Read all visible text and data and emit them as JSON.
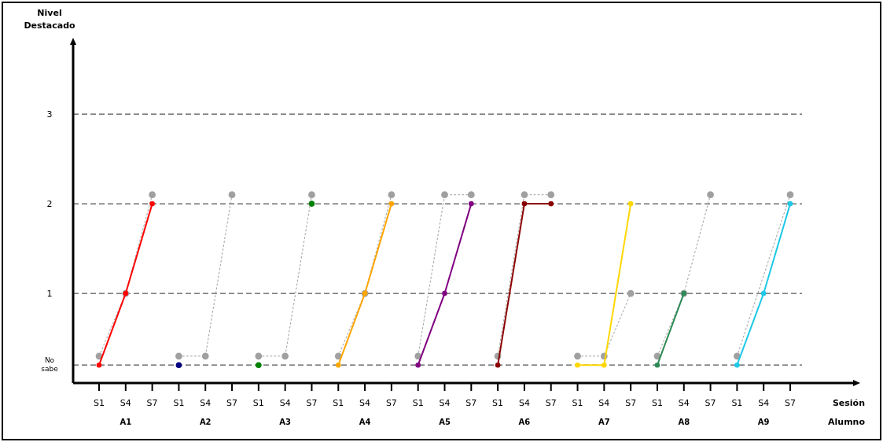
{
  "chart_data": {
    "type": "line",
    "xlabel": "Sesión",
    "ylabel": "Nivel Destacado",
    "annotations": [
      "A1",
      "A2",
      "A3",
      "A4",
      "A5",
      "A6",
      "A7",
      "A8",
      "A9",
      "Alumno"
    ],
    "categories": [
      "S1",
      "S4",
      "S7",
      "S1",
      "S4",
      "S7",
      "S1",
      "S4",
      "S7",
      "S1",
      "S4",
      "S7",
      "S1",
      "S4",
      "S7",
      "S1",
      "S4",
      "S7",
      "S1",
      "S4",
      "S7",
      "S1",
      "S4",
      "S7",
      "S1",
      "S4",
      "S7"
    ],
    "ylim": [
      0,
      3.8
    ],
    "yticks": [
      {
        "value": 0.2,
        "label": "No sabe"
      },
      1,
      2,
      3
    ],
    "grid": "y",
    "marker": "circle",
    "line_style": "solid",
    "series": [
      {
        "color": "#a0a0a0",
        "line_style": "dotted",
        "values": [
          0.3,
          1,
          2.1,
          null,
          null,
          null,
          null,
          null,
          null,
          null,
          null,
          null,
          null,
          null,
          null,
          null,
          null,
          null,
          null,
          null,
          null,
          null,
          null,
          null,
          null,
          null,
          null
        ]
      },
      {
        "color": "#a0a0a0",
        "line_style": "dotted",
        "values": [
          null,
          null,
          null,
          0.3,
          0.3,
          2.1,
          null,
          null,
          null,
          null,
          null,
          null,
          null,
          null,
          null,
          null,
          null,
          null,
          null,
          null,
          null,
          null,
          null,
          null,
          null,
          null,
          null
        ]
      },
      {
        "color": "#a0a0a0",
        "line_style": "dotted",
        "values": [
          null,
          null,
          null,
          null,
          null,
          null,
          0.3,
          0.3,
          2.1,
          null,
          null,
          null,
          null,
          null,
          null,
          null,
          null,
          null,
          null,
          null,
          null,
          null,
          null,
          null,
          null,
          null,
          null
        ]
      },
      {
        "color": "#a0a0a0",
        "line_style": "dotted",
        "values": [
          null,
          null,
          null,
          null,
          null,
          null,
          null,
          null,
          null,
          0.3,
          1,
          2.1,
          null,
          null,
          null,
          null,
          null,
          null,
          null,
          null,
          null,
          null,
          null,
          null,
          null,
          null,
          null
        ]
      },
      {
        "color": "#a0a0a0",
        "line_style": "dotted",
        "values": [
          null,
          null,
          null,
          null,
          null,
          null,
          null,
          null,
          null,
          null,
          null,
          null,
          0.3,
          2.1,
          2.1,
          null,
          null,
          null,
          null,
          null,
          null,
          null,
          null,
          null,
          null,
          null,
          null
        ]
      },
      {
        "color": "#a0a0a0",
        "line_style": "dotted",
        "values": [
          null,
          null,
          null,
          null,
          null,
          null,
          null,
          null,
          null,
          null,
          null,
          null,
          null,
          null,
          null,
          0.3,
          2.1,
          2.1,
          null,
          null,
          null,
          null,
          null,
          null,
          null,
          null,
          null
        ]
      },
      {
        "color": "#a0a0a0",
        "line_style": "dotted",
        "values": [
          null,
          null,
          null,
          null,
          null,
          null,
          null,
          null,
          null,
          null,
          null,
          null,
          null,
          null,
          null,
          null,
          null,
          null,
          0.3,
          0.3,
          1,
          null,
          null,
          null,
          null,
          null,
          null
        ]
      },
      {
        "color": "#a0a0a0",
        "line_style": "dotted",
        "values": [
          null,
          null,
          null,
          null,
          null,
          null,
          null,
          null,
          null,
          null,
          null,
          null,
          null,
          null,
          null,
          null,
          null,
          null,
          null,
          null,
          null,
          0.3,
          1,
          2.1,
          null,
          null,
          null
        ]
      },
      {
        "color": "#a0a0a0",
        "line_style": "dotted",
        "values": [
          null,
          null,
          null,
          null,
          null,
          null,
          null,
          null,
          null,
          null,
          null,
          null,
          null,
          null,
          null,
          null,
          null,
          null,
          null,
          null,
          null,
          null,
          null,
          null,
          0.3,
          null,
          2.1
        ]
      },
      {
        "color": "#ff0000",
        "values": [
          0.2,
          1,
          2,
          null,
          null,
          null,
          null,
          null,
          null,
          null,
          null,
          null,
          null,
          null,
          null,
          null,
          null,
          null,
          null,
          null,
          null,
          null,
          null,
          null,
          null,
          null,
          null
        ]
      },
      {
        "color": "#000080",
        "type": "scatter",
        "values": [
          null,
          null,
          null,
          0.2,
          null,
          null,
          null,
          null,
          null,
          null,
          null,
          null,
          null,
          null,
          null,
          null,
          null,
          null,
          null,
          null,
          null,
          null,
          null,
          null,
          null,
          null,
          null
        ]
      },
      {
        "color": "#008000",
        "type": "scatter",
        "values": [
          null,
          null,
          null,
          null,
          null,
          null,
          0.2,
          null,
          2,
          null,
          null,
          null,
          null,
          null,
          null,
          null,
          null,
          null,
          null,
          null,
          null,
          null,
          null,
          null,
          null,
          null,
          null
        ]
      },
      {
        "color": "#ffa500",
        "values": [
          null,
          null,
          null,
          null,
          null,
          null,
          null,
          null,
          null,
          0.2,
          1,
          2,
          null,
          null,
          null,
          null,
          null,
          null,
          null,
          null,
          null,
          null,
          null,
          null,
          null,
          null,
          null
        ]
      },
      {
        "color": "#800080",
        "values": [
          null,
          null,
          null,
          null,
          null,
          null,
          null,
          null,
          null,
          null,
          null,
          null,
          0.2,
          1,
          2,
          null,
          null,
          null,
          null,
          null,
          null,
          null,
          null,
          null,
          null,
          null,
          null
        ]
      },
      {
        "color": "#8b0000",
        "values": [
          null,
          null,
          null,
          null,
          null,
          null,
          null,
          null,
          null,
          null,
          null,
          null,
          null,
          null,
          null,
          0.2,
          2,
          2,
          null,
          null,
          null,
          null,
          null,
          null,
          null,
          null,
          null
        ]
      },
      {
        "color": "#ffd700",
        "values": [
          null,
          null,
          null,
          null,
          null,
          null,
          null,
          null,
          null,
          null,
          null,
          null,
          null,
          null,
          null,
          null,
          null,
          null,
          0.2,
          0.2,
          2,
          null,
          null,
          null,
          null,
          null,
          null
        ]
      },
      {
        "color": "#2e8b57",
        "values": [
          null,
          null,
          null,
          null,
          null,
          null,
          null,
          null,
          null,
          null,
          null,
          null,
          null,
          null,
          null,
          null,
          null,
          null,
          null,
          null,
          null,
          0.2,
          1,
          null,
          null,
          null,
          null
        ]
      },
      {
        "color": "#1ec8e6",
        "values": [
          null,
          null,
          null,
          null,
          null,
          null,
          null,
          null,
          null,
          null,
          null,
          null,
          null,
          null,
          null,
          null,
          null,
          null,
          null,
          null,
          null,
          null,
          null,
          null,
          0.2,
          1,
          2
        ]
      }
    ]
  }
}
